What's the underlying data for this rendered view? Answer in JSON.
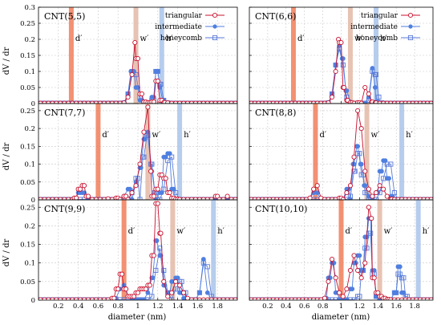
{
  "figure": {
    "xlabel": "diameter (nm)",
    "ylabel": "dV / dr"
  },
  "legend": {
    "triangular": "triangular",
    "intermediate": "intermediate",
    "honeycomb": "honeycomb"
  },
  "colors": {
    "triangular": "#c8102e",
    "intermediate": "#4f7fe0",
    "honeycomb": "#5a7ad8",
    "d_band": "#f07e5a",
    "w_band": "#e3b8a6",
    "h_band": "#a9c4ea"
  },
  "chart_data": [
    {
      "type": "line",
      "title": "CNT(5,5)",
      "xlim": [
        0,
        2.0
      ],
      "ylim": [
        0,
        0.3
      ],
      "yticks": [
        "0",
        "0.05",
        "0.1",
        "0.15",
        "0.2",
        "0.25",
        "0.3"
      ],
      "xticks": [
        "0.2",
        "0.4",
        "0.6",
        "0.8",
        "1",
        "1.2",
        "1.4",
        "1.6",
        "1.8"
      ],
      "bands": [
        {
          "label": "d′",
          "x": 0.33
        },
        {
          "label": "w′",
          "x": 0.98
        },
        {
          "label": "h′",
          "x": 1.24
        }
      ],
      "series": [
        {
          "name": "triangular",
          "x": [
            0.86,
            0.9,
            0.94,
            0.97,
            1.0,
            1.04,
            1.08,
            1.12,
            1.16,
            1.2,
            1.22,
            1.24,
            1.27,
            1.3
          ],
          "y": [
            0.002,
            0.02,
            0.09,
            0.19,
            0.14,
            0.03,
            0.005,
            0.003,
            0.005,
            0.07,
            0.045,
            0.01,
            0.003,
            0.002
          ]
        },
        {
          "name": "intermediate",
          "x": [
            0.86,
            0.9,
            0.93,
            0.96,
            1.0,
            1.04,
            1.08,
            1.16,
            1.2,
            1.22,
            1.25,
            1.3
          ],
          "y": [
            0.002,
            0.03,
            0.1,
            0.1,
            0.05,
            0.01,
            0.003,
            0.02,
            0.1,
            0.05,
            0.01,
            0.002
          ]
        },
        {
          "name": "honeycomb",
          "x": [
            0.86,
            0.9,
            0.94,
            0.98,
            1.02,
            1.16,
            1.2,
            1.23,
            1.26,
            1.3
          ],
          "y": [
            0.002,
            0.03,
            0.1,
            0.09,
            0.02,
            0.01,
            0.1,
            0.06,
            0.01,
            0.002
          ]
        }
      ]
    },
    {
      "type": "line",
      "title": "CNT(6,6)",
      "xlim": [
        0,
        2.0
      ],
      "ylim": [
        0,
        0.3
      ],
      "yticks": [
        "0",
        "0.05",
        "0.1",
        "0.15",
        "0.2",
        "0.25",
        "0.3"
      ],
      "xticks": [
        "0.2",
        "0.4",
        "0.6",
        "0.8",
        "1",
        "1.2",
        "1.4",
        "1.6",
        "1.8"
      ],
      "bands": [
        {
          "label": "d′",
          "x": 0.48
        },
        {
          "label": "w′",
          "x": 1.1
        },
        {
          "label": "h′",
          "x": 1.38
        }
      ],
      "series": [
        {
          "name": "triangular",
          "x": [
            0.86,
            0.9,
            0.94,
            0.97,
            1.0,
            1.03,
            1.07,
            1.12,
            1.2,
            1.26,
            1.3,
            1.33,
            1.37
          ],
          "y": [
            0.002,
            0.02,
            0.1,
            0.2,
            0.19,
            0.05,
            0.01,
            0.003,
            0.003,
            0.05,
            0.03,
            0.005,
            0.002
          ]
        },
        {
          "name": "intermediate",
          "x": [
            0.86,
            0.9,
            0.94,
            0.98,
            1.01,
            1.05,
            1.1,
            1.3,
            1.34,
            1.37,
            1.4
          ],
          "y": [
            0.002,
            0.03,
            0.12,
            0.18,
            0.14,
            0.04,
            0.005,
            0.02,
            0.11,
            0.05,
            0.005
          ]
        },
        {
          "name": "honeycomb",
          "x": [
            0.86,
            0.9,
            0.94,
            0.98,
            1.02,
            1.06,
            1.3,
            1.34,
            1.37,
            1.41,
            1.44
          ],
          "y": [
            0.002,
            0.03,
            0.12,
            0.17,
            0.12,
            0.02,
            0.01,
            0.1,
            0.09,
            0.02,
            0.002
          ]
        }
      ]
    },
    {
      "type": "line",
      "title": "CNT(7,7)",
      "xlim": [
        0,
        2.0
      ],
      "ylim": [
        0,
        0.27
      ],
      "yticks": [
        "0",
        "0.05",
        "0.1",
        "0.15",
        "0.2",
        "0.25"
      ],
      "xticks": [
        "0.2",
        "0.4",
        "0.6",
        "0.8",
        "1",
        "1.2",
        "1.4",
        "1.6",
        "1.8"
      ],
      "bands": [
        {
          "label": "d′",
          "x": 0.6
        },
        {
          "label": "w′",
          "x": 1.1
        },
        {
          "label": "h′",
          "x": 1.42
        }
      ],
      "series": [
        {
          "name": "triangular",
          "x": [
            0.36,
            0.4,
            0.44,
            0.48,
            0.7,
            0.8,
            0.88,
            0.94,
            0.98,
            1.02,
            1.06,
            1.1,
            1.13,
            1.16,
            1.2,
            1.24,
            1.28,
            1.32,
            1.36,
            1.4,
            1.8,
            1.9
          ],
          "y": [
            0.005,
            0.03,
            0.04,
            0.01,
            0.003,
            0.005,
            0.01,
            0.02,
            0.04,
            0.1,
            0.19,
            0.26,
            0.08,
            0.01,
            0.03,
            0.07,
            0.06,
            0.02,
            0.005,
            0.002,
            0.01,
            0.01
          ]
        },
        {
          "name": "intermediate",
          "x": [
            0.36,
            0.4,
            0.44,
            0.86,
            0.92,
            0.98,
            1.03,
            1.07,
            1.1,
            1.14,
            1.24,
            1.28,
            1.32,
            1.36
          ],
          "y": [
            0.005,
            0.02,
            0.02,
            0.01,
            0.03,
            0.05,
            0.09,
            0.17,
            0.19,
            0.08,
            0.02,
            0.12,
            0.13,
            0.03
          ]
        },
        {
          "name": "honeycomb",
          "x": [
            0.88,
            0.94,
            1.0,
            1.05,
            1.09,
            1.13,
            1.17,
            1.26,
            1.3,
            1.34,
            1.38
          ],
          "y": [
            0.005,
            0.02,
            0.06,
            0.12,
            0.18,
            0.1,
            0.02,
            0.03,
            0.11,
            0.12,
            0.02
          ]
        }
      ]
    },
    {
      "type": "line",
      "title": "CNT(8,8)",
      "xlim": [
        0,
        2.0
      ],
      "ylim": [
        0,
        0.27
      ],
      "yticks": [
        "0",
        "0.05",
        "0.1",
        "0.15",
        "0.2",
        "0.25"
      ],
      "xticks": [
        "0.2",
        "0.4",
        "0.6",
        "0.8",
        "1",
        "1.2",
        "1.4",
        "1.6",
        "1.8"
      ],
      "bands": [
        {
          "label": "d′",
          "x": 0.72
        },
        {
          "label": "w′",
          "x": 1.28
        },
        {
          "label": "h′",
          "x": 1.66
        }
      ],
      "series": [
        {
          "name": "triangular",
          "x": [
            0.66,
            0.7,
            0.74,
            0.78,
            1.0,
            1.06,
            1.1,
            1.14,
            1.18,
            1.22,
            1.26,
            1.3,
            1.34,
            1.38,
            1.42,
            1.46,
            1.5,
            1.55
          ],
          "y": [
            0.005,
            0.03,
            0.04,
            0.005,
            0.005,
            0.02,
            0.04,
            0.12,
            0.25,
            0.2,
            0.08,
            0.03,
            0.01,
            0.02,
            0.04,
            0.03,
            0.01,
            0.002
          ]
        },
        {
          "name": "intermediate",
          "x": [
            0.66,
            0.7,
            0.74,
            1.08,
            1.13,
            1.17,
            1.21,
            1.25,
            1.3,
            1.4,
            1.44,
            1.48,
            1.52,
            1.56
          ],
          "y": [
            0.005,
            0.02,
            0.02,
            0.03,
            0.1,
            0.15,
            0.1,
            0.04,
            0.01,
            0.02,
            0.08,
            0.11,
            0.06,
            0.01
          ]
        },
        {
          "name": "honeycomb",
          "x": [
            1.1,
            1.15,
            1.2,
            1.24,
            1.28,
            1.42,
            1.46,
            1.5,
            1.54,
            1.58
          ],
          "y": [
            0.01,
            0.08,
            0.13,
            0.07,
            0.02,
            0.02,
            0.06,
            0.1,
            0.1,
            0.02
          ]
        }
      ]
    },
    {
      "type": "line",
      "title": "CNT(9,9)",
      "xlim": [
        0,
        2.0
      ],
      "ylim": [
        0,
        0.27
      ],
      "yticks": [
        "0",
        "0.05",
        "0.1",
        "0.15",
        "0.2",
        "0.25"
      ],
      "xticks": [
        "0.2",
        "0.4",
        "0.6",
        "0.8",
        "1",
        "1.2",
        "1.4",
        "1.6",
        "1.8"
      ],
      "bands": [
        {
          "label": "d′",
          "x": 0.86
        },
        {
          "label": "w′",
          "x": 1.35
        },
        {
          "label": "h′",
          "x": 1.76
        }
      ],
      "series": [
        {
          "name": "triangular",
          "x": [
            0.76,
            0.8,
            0.84,
            0.88,
            0.92,
            0.96,
            1.0,
            1.04,
            1.08,
            1.12,
            1.16,
            1.2,
            1.23,
            1.26,
            1.3,
            1.34,
            1.38,
            1.42,
            1.46,
            1.5
          ],
          "y": [
            0.005,
            0.03,
            0.07,
            0.03,
            0.01,
            0.01,
            0.02,
            0.03,
            0.03,
            0.04,
            0.12,
            0.26,
            0.18,
            0.05,
            0.01,
            0.02,
            0.05,
            0.04,
            0.02,
            0.005
          ]
        },
        {
          "name": "intermediate",
          "x": [
            0.78,
            0.82,
            0.86,
            0.9,
            1.1,
            1.15,
            1.19,
            1.23,
            1.27,
            1.32,
            1.36,
            1.4,
            1.44,
            1.48,
            1.62,
            1.66,
            1.7
          ],
          "y": [
            0.005,
            0.03,
            0.04,
            0.01,
            0.02,
            0.06,
            0.16,
            0.12,
            0.04,
            0.02,
            0.05,
            0.06,
            0.02,
            0.005,
            0.02,
            0.11,
            0.02
          ]
        },
        {
          "name": "honeycomb",
          "x": [
            1.14,
            1.18,
            1.22,
            1.26,
            1.3,
            1.4,
            1.44,
            1.48,
            1.62,
            1.66,
            1.7,
            1.74
          ],
          "y": [
            0.01,
            0.08,
            0.14,
            0.08,
            0.02,
            0.03,
            0.05,
            0.02,
            0.02,
            0.1,
            0.09,
            0.01
          ]
        }
      ]
    },
    {
      "type": "line",
      "title": "CNT(10,10)",
      "xlim": [
        0,
        2.0
      ],
      "ylim": [
        0,
        0.27
      ],
      "yticks": [
        "0",
        "0.05",
        "0.1",
        "0.15",
        "0.2",
        "0.25"
      ],
      "xticks": [
        "0.2",
        "0.4",
        "0.6",
        "0.8",
        "1",
        "1.2",
        "1.4",
        "1.6",
        "1.8"
      ],
      "bands": [
        {
          "label": "d′",
          "x": 1.0
        },
        {
          "label": "w′",
          "x": 1.42
        },
        {
          "label": "h′",
          "x": 1.84
        }
      ],
      "series": [
        {
          "name": "triangular",
          "x": [
            0.82,
            0.86,
            0.9,
            0.94,
            0.98,
            1.02,
            1.06,
            1.1,
            1.14,
            1.18,
            1.22,
            1.26,
            1.3,
            1.33,
            1.36,
            1.4,
            1.44,
            1.48,
            1.52
          ],
          "y": [
            0.005,
            0.05,
            0.11,
            0.06,
            0.02,
            0.01,
            0.03,
            0.08,
            0.12,
            0.08,
            0.06,
            0.1,
            0.25,
            0.22,
            0.06,
            0.02,
            0.01,
            0.005,
            0.002
          ]
        },
        {
          "name": "intermediate",
          "x": [
            0.84,
            0.88,
            0.92,
            0.96,
            1.12,
            1.16,
            1.2,
            1.24,
            1.28,
            1.32,
            1.36,
            1.4,
            1.6,
            1.64,
            1.68
          ],
          "y": [
            0.005,
            0.06,
            0.1,
            0.02,
            0.03,
            0.1,
            0.12,
            0.08,
            0.17,
            0.22,
            0.08,
            0.01,
            0.02,
            0.09,
            0.02
          ]
        },
        {
          "name": "honeycomb",
          "x": [
            1.2,
            1.24,
            1.28,
            1.32,
            1.36,
            1.4,
            1.6,
            1.64,
            1.68,
            1.72
          ],
          "y": [
            0.01,
            0.08,
            0.14,
            0.18,
            0.07,
            0.01,
            0.02,
            0.07,
            0.06,
            0.01
          ]
        }
      ]
    }
  ]
}
